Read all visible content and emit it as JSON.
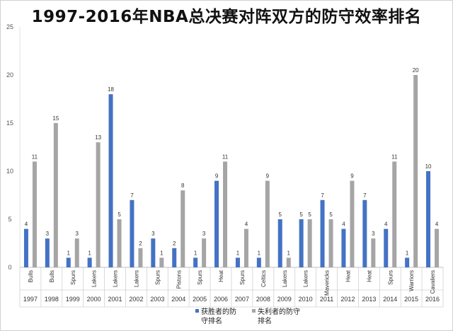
{
  "chart_data": {
    "type": "bar",
    "title": "1997-2016年NBA总决赛对阵双方的防守效率排名",
    "categories": [
      "1997",
      "1998",
      "1999",
      "2000",
      "2001",
      "2002",
      "2003",
      "2004",
      "2005",
      "2006",
      "2007",
      "2008",
      "2009",
      "2010",
      "2011",
      "2012",
      "2013",
      "2014",
      "2015",
      "2016"
    ],
    "teams": [
      "Bulls",
      "Bulls",
      "Spurs",
      "Lakers",
      "Lakers",
      "Lakers",
      "Spurs",
      "Pistons",
      "Spurs",
      "Heat",
      "Spurs",
      "Celtics",
      "Lakers",
      "Lakers",
      "Mavericks",
      "Heat",
      "Heat",
      "Spurs",
      "Warriors",
      "Cavaliers"
    ],
    "series": [
      {
        "name": "获胜者的防守排名",
        "name_lines": [
          "获胜者的防",
          "守排名"
        ],
        "color": "#4472c4",
        "values": [
          4,
          3,
          1,
          1,
          18,
          7,
          3,
          2,
          1,
          9,
          1,
          1,
          5,
          5,
          7,
          4,
          7,
          4,
          1,
          10
        ]
      },
      {
        "name": "失利者的防守排名",
        "name_lines": [
          "失利者的防守",
          "排名"
        ],
        "color": "#a5a5a5",
        "values": [
          11,
          15,
          3,
          13,
          5,
          2,
          1,
          8,
          3,
          11,
          4,
          9,
          1,
          5,
          5,
          9,
          3,
          11,
          20,
          4
        ]
      }
    ],
    "ylim": [
      0,
      25
    ],
    "yticks": [
      0,
      5,
      10,
      15,
      20,
      25
    ],
    "grid": false,
    "legend": "bottom-right"
  }
}
